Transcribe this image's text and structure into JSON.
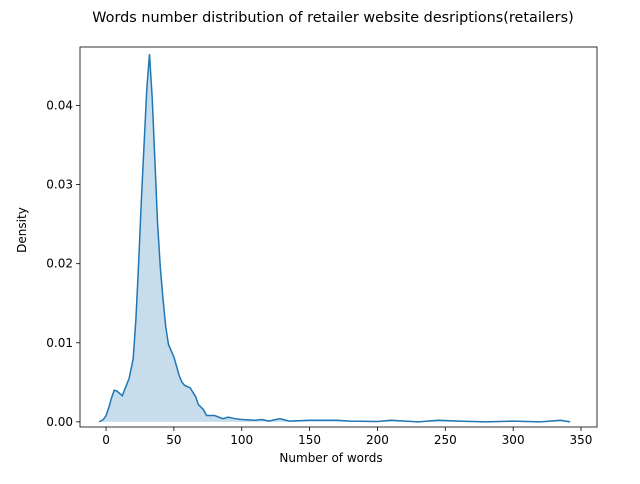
{
  "chart_data": {
    "type": "kde",
    "title": "Words number distribution of retailer website desriptions(retailers)",
    "x_label": "Number of words",
    "y_label": "Density",
    "color": "#1f77b4",
    "fill_opacity": 0.25,
    "x": [
      -5,
      -2,
      0,
      2,
      4,
      6,
      8,
      10,
      12,
      14,
      17,
      20,
      22,
      24,
      26,
      28,
      30,
      32,
      34,
      36,
      38,
      40,
      42,
      44,
      46,
      48,
      50,
      52,
      54,
      56,
      58,
      62,
      66,
      68,
      72,
      74,
      80,
      86,
      90,
      95,
      100,
      110,
      115,
      120,
      128,
      135,
      150,
      170,
      180,
      200,
      210,
      230,
      245,
      260,
      280,
      300,
      320,
      335,
      342
    ],
    "values": [
      0,
      0.0003,
      0.0008,
      0.0018,
      0.003,
      0.004,
      0.0039,
      0.0036,
      0.0033,
      0.0042,
      0.0055,
      0.008,
      0.013,
      0.02,
      0.028,
      0.035,
      0.042,
      0.0465,
      0.041,
      0.033,
      0.025,
      0.0195,
      0.0155,
      0.012,
      0.0098,
      0.009,
      0.0082,
      0.007,
      0.0058,
      0.005,
      0.0046,
      0.0043,
      0.0032,
      0.0022,
      0.0015,
      0.0008,
      0.0008,
      0.0004,
      0.0006,
      0.0004,
      0.0003,
      0.0002,
      0.0003,
      0.0001,
      0.0004,
      0.0001,
      0.0002,
      0.0002,
      0.0001,
      5e-05,
      0.0002,
      0,
      0.0002,
      0.0001,
      0,
      0.0001,
      0,
      0.0002,
      0
    ],
    "xlim": [
      -19.2,
      361.8
    ],
    "ylim": [
      -0.00065,
      0.0474
    ],
    "xticks": [
      0,
      50,
      100,
      150,
      200,
      250,
      300,
      350
    ],
    "yticks": [
      {
        "value": 0,
        "label": "0.00"
      },
      {
        "value": 0.01,
        "label": "0.01"
      },
      {
        "value": 0.02,
        "label": "0.02"
      },
      {
        "value": 0.03,
        "label": "0.03"
      },
      {
        "value": 0.04,
        "label": "0.04"
      }
    ]
  }
}
